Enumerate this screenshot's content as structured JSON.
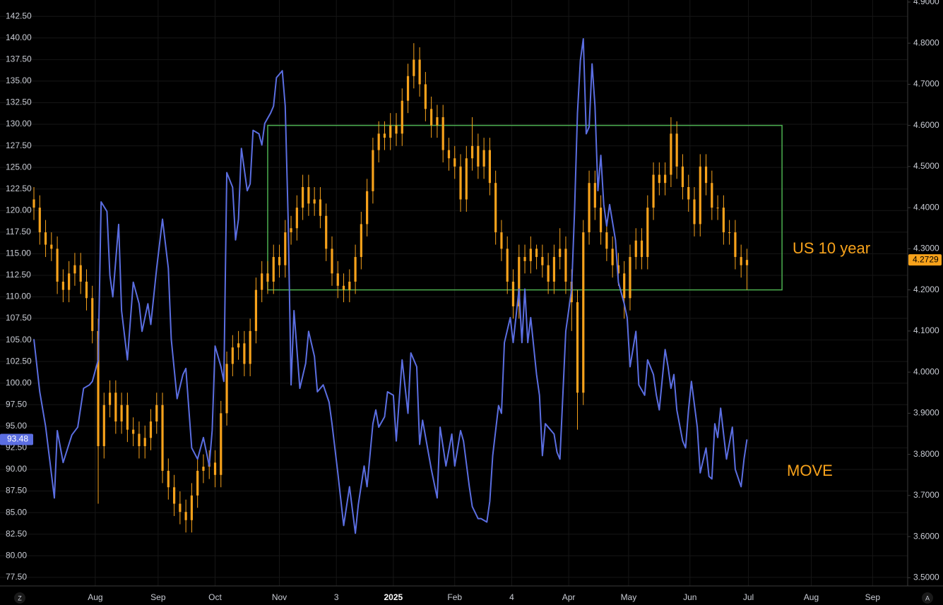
{
  "chart_data": {
    "type": "candlestick",
    "xlim": [
      0,
      299
    ],
    "ylim": [
      76.5,
      144.4
    ],
    "y2lim": [
      3.48,
      4.905
    ],
    "grid": true,
    "xticks": [
      {
        "value": 21,
        "label": "Aug"
      },
      {
        "value": 42.5,
        "label": "Sep"
      },
      {
        "value": 62,
        "label": "Oct"
      },
      {
        "value": 84,
        "label": "Nov"
      },
      {
        "value": 103.5,
        "label": "3"
      },
      {
        "value": 123,
        "label": "2025"
      },
      {
        "value": 144,
        "label": "Feb"
      },
      {
        "value": 163.5,
        "label": "4"
      },
      {
        "value": 183,
        "label": "Apr"
      },
      {
        "value": 203.5,
        "label": "May"
      },
      {
        "value": 224.5,
        "label": "Jun"
      },
      {
        "value": 244.5,
        "label": "Jul"
      },
      {
        "value": 266,
        "label": "Aug"
      },
      {
        "value": 287,
        "label": "Sep"
      }
    ],
    "yticks": [
      {
        "value": 77.5,
        "label": "77.50"
      },
      {
        "value": 80,
        "label": "80.00"
      },
      {
        "value": 82.5,
        "label": "82.50"
      },
      {
        "value": 85,
        "label": "85.00"
      },
      {
        "value": 87.5,
        "label": "87.50"
      },
      {
        "value": 90,
        "label": "90.00"
      },
      {
        "value": 92.5,
        "label": "92.50"
      },
      {
        "value": 95,
        "label": "95.00"
      },
      {
        "value": 97.5,
        "label": "97.50"
      },
      {
        "value": 100,
        "label": "100.00"
      },
      {
        "value": 102.5,
        "label": "102.50"
      },
      {
        "value": 105,
        "label": "105.00"
      },
      {
        "value": 107.5,
        "label": "107.50"
      },
      {
        "value": 110,
        "label": "110.00"
      },
      {
        "value": 112.5,
        "label": "112.50"
      },
      {
        "value": 115,
        "label": "115.00"
      },
      {
        "value": 117.5,
        "label": "117.50"
      },
      {
        "value": 120,
        "label": "120.00"
      },
      {
        "value": 122.5,
        "label": "122.50"
      },
      {
        "value": 125,
        "label": "125.00"
      },
      {
        "value": 127.5,
        "label": "127.50"
      },
      {
        "value": 130,
        "label": "130.00"
      },
      {
        "value": 132.5,
        "label": "132.50"
      },
      {
        "value": 135,
        "label": "135.00"
      },
      {
        "value": 137.5,
        "label": "137.50"
      },
      {
        "value": 140,
        "label": "140.00"
      },
      {
        "value": 142.5,
        "label": "142.50"
      }
    ],
    "y2ticks": [
      {
        "value": 3.5,
        "label": "3.5000"
      },
      {
        "value": 3.6,
        "label": "3.6000"
      },
      {
        "value": 3.7,
        "label": "3.7000"
      },
      {
        "value": 3.8,
        "label": "3.8000"
      },
      {
        "value": 3.9,
        "label": "3.9000"
      },
      {
        "value": 4.0,
        "label": "4.0000"
      },
      {
        "value": 4.1,
        "label": "4.1000"
      },
      {
        "value": 4.2,
        "label": "4.2000"
      },
      {
        "value": 4.3,
        "label": "4.3000"
      },
      {
        "value": 4.4,
        "label": "4.4000"
      },
      {
        "value": 4.5,
        "label": "4.5000"
      },
      {
        "value": 4.6,
        "label": "4.6000"
      },
      {
        "value": 4.7,
        "label": "4.7000"
      },
      {
        "value": 4.8,
        "label": "4.8000"
      },
      {
        "value": 4.9,
        "label": "4.9000"
      }
    ],
    "highlight_box": {
      "x": [
        80,
        256
      ],
      "y": [
        4.2,
        4.6
      ],
      "color": "#4caf50"
    },
    "buttons": {
      "left": "Z",
      "right": "A"
    },
    "series": [
      {
        "name": "US 10 year",
        "type": "candlestick",
        "axis": "y2",
        "color": "#f7a21b",
        "x": [
          0,
          2,
          4,
          6,
          8,
          10,
          12,
          14,
          16,
          18,
          20,
          22,
          24,
          26,
          28,
          30,
          32,
          34,
          36,
          38,
          40,
          42,
          44,
          46,
          48,
          50,
          52,
          54,
          56,
          58,
          60,
          62,
          64,
          66,
          68,
          70,
          72,
          74,
          76,
          78,
          80,
          82,
          84,
          86,
          88,
          90,
          92,
          94,
          96,
          98,
          100,
          102,
          104,
          106,
          108,
          110,
          112,
          114,
          116,
          118,
          120,
          122,
          124,
          126,
          128,
          130,
          132,
          134,
          136,
          138,
          140,
          142,
          144,
          146,
          148,
          150,
          152,
          154,
          156,
          158,
          160,
          162,
          164,
          166,
          168,
          170,
          172,
          174,
          176,
          178,
          180,
          182,
          184,
          186,
          188,
          190,
          192,
          194,
          196,
          198,
          200,
          202,
          204,
          206,
          208,
          210,
          212,
          214,
          216,
          218,
          220,
          222,
          224,
          226,
          228,
          230,
          232,
          234,
          236,
          238,
          240,
          242,
          244
        ],
        "open": [
          4.42,
          4.4,
          4.34,
          4.31,
          4.3,
          4.22,
          4.2,
          4.24,
          4.26,
          4.22,
          4.18,
          4.1,
          3.82,
          3.92,
          3.95,
          3.88,
          3.92,
          3.86,
          3.85,
          3.82,
          3.84,
          3.88,
          3.92,
          3.76,
          3.72,
          3.68,
          3.66,
          3.64,
          3.7,
          3.76,
          3.77,
          3.78,
          3.75,
          3.9,
          4.02,
          4.06,
          4.07,
          4.02,
          4.1,
          4.2,
          4.24,
          4.22,
          4.28,
          4.26,
          4.34,
          4.35,
          4.4,
          4.45,
          4.41,
          4.42,
          4.38,
          4.3,
          4.24,
          4.21,
          4.2,
          4.22,
          4.28,
          4.36,
          4.44,
          4.54,
          4.58,
          4.57,
          4.6,
          4.58,
          4.66,
          4.72,
          4.76,
          4.7,
          4.64,
          4.6,
          4.62,
          4.54,
          4.52,
          4.5,
          4.42,
          4.52,
          4.55,
          4.5,
          4.54,
          4.46,
          4.34,
          4.3,
          4.22,
          4.16,
          4.28,
          4.27,
          4.3,
          4.28,
          4.26,
          4.22,
          4.28,
          4.3,
          4.22,
          4.17,
          3.95,
          4.34,
          4.46,
          4.4,
          4.34,
          4.3,
          4.26,
          4.24,
          4.18,
          4.28,
          4.32,
          4.28,
          4.4,
          4.48,
          4.46,
          4.48,
          4.58,
          4.5,
          4.45,
          4.42,
          4.36,
          4.5,
          4.46,
          4.4,
          4.4,
          4.34,
          4.34,
          4.28,
          4.26
        ],
        "high": [
          4.45,
          4.43,
          4.37,
          4.34,
          4.33,
          4.25,
          4.27,
          4.29,
          4.29,
          4.25,
          4.21,
          4.13,
          3.95,
          3.98,
          3.98,
          3.95,
          3.95,
          3.89,
          3.88,
          3.87,
          3.91,
          3.95,
          3.95,
          3.79,
          3.75,
          3.71,
          3.69,
          3.73,
          3.79,
          3.8,
          3.81,
          3.81,
          3.93,
          4.05,
          4.09,
          4.1,
          4.1,
          4.13,
          4.23,
          4.27,
          4.27,
          4.31,
          4.31,
          4.37,
          4.38,
          4.43,
          4.48,
          4.48,
          4.45,
          4.45,
          4.41,
          4.33,
          4.27,
          4.24,
          4.25,
          4.31,
          4.39,
          4.47,
          4.57,
          4.61,
          4.61,
          4.63,
          4.63,
          4.69,
          4.75,
          4.8,
          4.79,
          4.73,
          4.67,
          4.65,
          4.65,
          4.57,
          4.55,
          4.53,
          4.55,
          4.62,
          4.58,
          4.57,
          4.57,
          4.49,
          4.37,
          4.33,
          4.25,
          4.31,
          4.31,
          4.33,
          4.31,
          4.31,
          4.29,
          4.31,
          4.35,
          4.33,
          4.25,
          4.2,
          4.37,
          4.49,
          4.49,
          4.43,
          4.37,
          4.33,
          4.29,
          4.27,
          4.31,
          4.35,
          4.35,
          4.43,
          4.51,
          4.51,
          4.51,
          4.62,
          4.61,
          4.53,
          4.48,
          4.45,
          4.53,
          4.53,
          4.49,
          4.43,
          4.43,
          4.37,
          4.37,
          4.31,
          4.3
        ],
        "low": [
          4.37,
          4.31,
          4.28,
          4.27,
          4.19,
          4.17,
          4.17,
          4.21,
          4.19,
          4.15,
          4.07,
          3.68,
          3.79,
          3.89,
          3.85,
          3.85,
          3.83,
          3.82,
          3.79,
          3.79,
          3.81,
          3.85,
          3.73,
          3.69,
          3.65,
          3.63,
          3.61,
          3.61,
          3.67,
          3.73,
          3.74,
          3.72,
          3.72,
          3.87,
          3.99,
          4.03,
          3.99,
          3.99,
          4.07,
          4.17,
          4.19,
          4.19,
          4.23,
          4.23,
          4.31,
          4.32,
          4.37,
          4.38,
          4.38,
          4.35,
          4.27,
          4.21,
          4.18,
          4.17,
          4.17,
          4.19,
          4.25,
          4.33,
          4.41,
          4.51,
          4.54,
          4.54,
          4.55,
          4.55,
          4.63,
          4.69,
          4.67,
          4.61,
          4.57,
          4.57,
          4.51,
          4.49,
          4.47,
          4.39,
          4.39,
          4.49,
          4.47,
          4.47,
          4.43,
          4.31,
          4.27,
          4.19,
          4.13,
          4.13,
          4.24,
          4.24,
          4.25,
          4.23,
          4.19,
          4.19,
          4.25,
          4.19,
          4.1,
          3.86,
          3.92,
          4.31,
          4.37,
          4.31,
          4.27,
          4.23,
          4.21,
          4.13,
          4.15,
          4.25,
          4.25,
          4.25,
          4.37,
          4.43,
          4.43,
          4.45,
          4.47,
          4.42,
          4.39,
          4.33,
          4.33,
          4.43,
          4.37,
          4.37,
          4.31,
          4.31,
          4.25,
          4.23,
          4.2
        ],
        "close": [
          4.4,
          4.34,
          4.31,
          4.3,
          4.22,
          4.2,
          4.24,
          4.26,
          4.22,
          4.18,
          4.1,
          3.82,
          3.92,
          3.95,
          3.88,
          3.92,
          3.86,
          3.85,
          3.82,
          3.84,
          3.88,
          3.92,
          3.76,
          3.72,
          3.68,
          3.66,
          3.64,
          3.7,
          3.76,
          3.77,
          3.78,
          3.75,
          3.9,
          4.02,
          4.06,
          4.07,
          4.02,
          4.1,
          4.2,
          4.24,
          4.22,
          4.28,
          4.26,
          4.34,
          4.35,
          4.4,
          4.45,
          4.41,
          4.42,
          4.38,
          4.3,
          4.24,
          4.21,
          4.2,
          4.22,
          4.28,
          4.36,
          4.44,
          4.54,
          4.58,
          4.57,
          4.6,
          4.58,
          4.66,
          4.72,
          4.76,
          4.7,
          4.64,
          4.6,
          4.62,
          4.54,
          4.52,
          4.5,
          4.42,
          4.52,
          4.55,
          4.5,
          4.54,
          4.46,
          4.34,
          4.3,
          4.22,
          4.16,
          4.28,
          4.27,
          4.3,
          4.28,
          4.26,
          4.22,
          4.28,
          4.3,
          4.22,
          4.17,
          3.95,
          4.34,
          4.46,
          4.4,
          4.34,
          4.3,
          4.26,
          4.24,
          4.18,
          4.28,
          4.32,
          4.28,
          4.4,
          4.48,
          4.46,
          4.48,
          4.58,
          4.5,
          4.45,
          4.42,
          4.36,
          4.5,
          4.46,
          4.4,
          4.4,
          4.34,
          4.34,
          4.28,
          4.26,
          4.2729
        ]
      },
      {
        "name": "MOVE",
        "type": "line",
        "axis": "y",
        "color": "#5b6ee1",
        "x": [
          0,
          2,
          4,
          7,
          8,
          10,
          13,
          15,
          17,
          19,
          20,
          22,
          23,
          25,
          26,
          27,
          29,
          30,
          32,
          34,
          36,
          37,
          39,
          40,
          42,
          44,
          46,
          47,
          49,
          51,
          52,
          54,
          56,
          58,
          60,
          61,
          62,
          64,
          65,
          66,
          68,
          69,
          70,
          71,
          73,
          74,
          75,
          77,
          78,
          79,
          81,
          82,
          83,
          85,
          86,
          87,
          88,
          89,
          91,
          93,
          94,
          96,
          97,
          99,
          101,
          102,
          104,
          106,
          108,
          110,
          111,
          113,
          114,
          116,
          117,
          118,
          120,
          121,
          123,
          124,
          126,
          128,
          129,
          131,
          132,
          133,
          136,
          138,
          139,
          141,
          143,
          144,
          146,
          147,
          149,
          150,
          152,
          153,
          155,
          156,
          157,
          159,
          160,
          161,
          163,
          164,
          166,
          167,
          168,
          169,
          170,
          172,
          173,
          174,
          175,
          176,
          178,
          179,
          180,
          181,
          182,
          184,
          185,
          186,
          187,
          188,
          189,
          190,
          191,
          192,
          193,
          194,
          195,
          196,
          197,
          199,
          200,
          202,
          203,
          204,
          206,
          207,
          209,
          210,
          212,
          213,
          214,
          216,
          217,
          218,
          219,
          220,
          222,
          223,
          224,
          225,
          227,
          228,
          230,
          231,
          232,
          233,
          234,
          235,
          236,
          237,
          239,
          240,
          242,
          243,
          244
        ],
        "values": [
          105.1,
          99.0,
          95.0,
          86.7,
          94.5,
          90.8,
          94.0,
          94.9,
          99.4,
          99.8,
          100.2,
          102.7,
          121.0,
          119.9,
          112.5,
          110.0,
          118.4,
          108.4,
          102.7,
          111.7,
          109.2,
          106.0,
          109.2,
          106.8,
          113.3,
          119.0,
          113.3,
          105.1,
          98.2,
          101.0,
          101.7,
          92.5,
          91.2,
          93.7,
          90.4,
          94.5,
          104.3,
          101.9,
          100.2,
          124.4,
          122.7,
          116.6,
          119.0,
          127.2,
          122.3,
          123.1,
          129.3,
          128.9,
          127.6,
          130.1,
          131.3,
          132.1,
          135.4,
          136.2,
          132.1,
          119.0,
          99.8,
          108.4,
          99.4,
          102.3,
          106.0,
          103.1,
          99.0,
          99.8,
          97.8,
          95.3,
          89.6,
          83.5,
          88.0,
          82.6,
          85.9,
          90.4,
          88.0,
          95.3,
          96.9,
          94.9,
          96.1,
          99.0,
          98.6,
          93.3,
          102.7,
          96.5,
          103.5,
          101.9,
          92.9,
          95.7,
          90.0,
          86.7,
          94.9,
          90.4,
          94.1,
          90.4,
          94.5,
          93.3,
          88.0,
          85.7,
          84.3,
          84.3,
          83.9,
          86.3,
          91.6,
          97.4,
          96.5,
          104.7,
          107.6,
          104.7,
          110.9,
          104.7,
          110.9,
          104.7,
          107.6,
          101.0,
          98.6,
          91.6,
          95.3,
          94.9,
          94.1,
          92.0,
          91.2,
          98.6,
          106.0,
          110.9,
          119.9,
          131.3,
          137.4,
          139.9,
          128.9,
          129.7,
          137.0,
          132.1,
          122.3,
          126.4,
          120.7,
          118.2,
          120.7,
          116.6,
          111.7,
          109.2,
          107.6,
          101.9,
          106.0,
          99.8,
          98.6,
          102.7,
          101.0,
          98.6,
          96.9,
          103.9,
          101.9,
          99.4,
          101.0,
          96.9,
          93.3,
          92.5,
          96.9,
          100.2,
          94.9,
          89.6,
          92.5,
          89.2,
          88.9,
          95.3,
          93.7,
          97.1,
          94.1,
          91.2,
          94.9,
          90.0,
          88.0,
          91.2,
          93.48
        ]
      }
    ]
  }
}
